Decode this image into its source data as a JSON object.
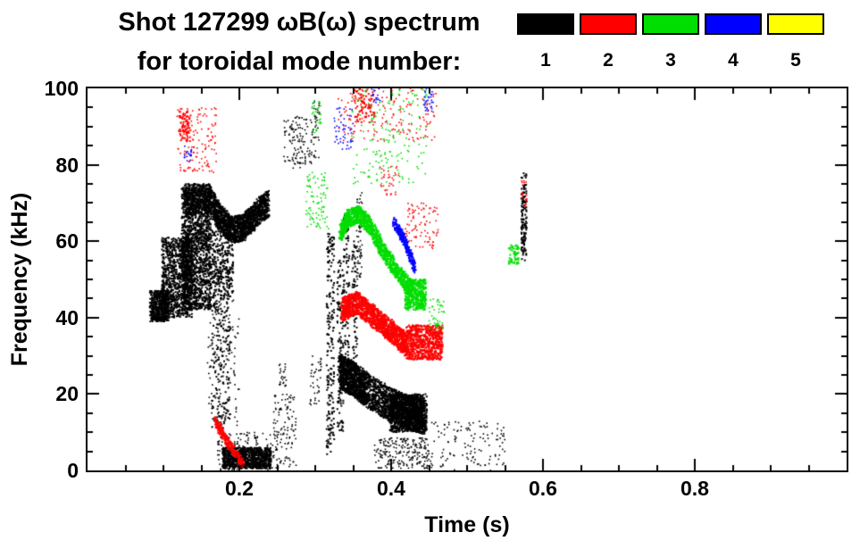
{
  "figure": {
    "title_line1": "Shot 127299 ωB(ω) spectrum",
    "title_line2": "for toroidal mode number:",
    "background": "#ffffff"
  },
  "legend": {
    "entries": [
      {
        "label": "1",
        "color": "#000000"
      },
      {
        "label": "2",
        "color": "#ff0000"
      },
      {
        "label": "3",
        "color": "#00dd00"
      },
      {
        "label": "4",
        "color": "#0000ff"
      },
      {
        "label": "5",
        "color": "#ffff00"
      }
    ]
  },
  "chart_data": {
    "type": "scatter",
    "title": "Shot 127299 ωB(ω) spectrum for toroidal mode number: 1-5",
    "xlabel": "Time (s)",
    "ylabel": "Frequency (kHz)",
    "xlim": [
      0,
      1
    ],
    "ylim": [
      0,
      100
    ],
    "xticks_major": [
      0.2,
      0.4,
      0.6,
      0.8
    ],
    "xticks_minor_step": 0.05,
    "yticks_major": [
      20,
      40,
      60,
      80
    ],
    "yticks_minor_step": 5,
    "xtick_labels": [
      "0.2",
      "0.4",
      "0.6",
      "0.8"
    ],
    "ytick_labels": [
      "0",
      "20",
      "40",
      "60",
      "80",
      "100"
    ],
    "grid": false,
    "legend_position": "top-right",
    "series": [
      {
        "mode": 1,
        "name": "n=1",
        "color": "#000000"
      },
      {
        "mode": 2,
        "name": "n=2",
        "color": "#ff0000"
      },
      {
        "mode": 3,
        "name": "n=3",
        "color": "#00dd00"
      },
      {
        "mode": 4,
        "name": "n=4",
        "color": "#0000ff"
      },
      {
        "mode": 5,
        "name": "n=5",
        "color": "#ffff00"
      }
    ],
    "clusters": [
      {
        "mode": 1,
        "type": "blob",
        "t": [
          0.082,
          0.107
        ],
        "f": [
          39,
          47
        ],
        "n": 500,
        "size": 2
      },
      {
        "mode": 1,
        "type": "blob",
        "t": [
          0.098,
          0.138
        ],
        "f": [
          40,
          61
        ],
        "n": 1000,
        "size": 2
      },
      {
        "mode": 1,
        "type": "blob",
        "t": [
          0.124,
          0.163
        ],
        "f": [
          42,
          74
        ],
        "n": 1500,
        "size": 2
      },
      {
        "mode": 1,
        "type": "blob",
        "t": [
          0.128,
          0.162
        ],
        "f": [
          67,
          75
        ],
        "n": 420,
        "size": 2
      },
      {
        "mode": 1,
        "type": "band",
        "path": [
          [
            0.161,
            71
          ],
          [
            0.175,
            66
          ],
          [
            0.19,
            63
          ],
          [
            0.205,
            63.5
          ],
          [
            0.222,
            67
          ],
          [
            0.238,
            70
          ]
        ],
        "width": 7,
        "n": 1600,
        "size": 2
      },
      {
        "mode": 1,
        "type": "blob",
        "t": [
          0.162,
          0.192
        ],
        "f": [
          45,
          63
        ],
        "n": 260,
        "size": 2
      },
      {
        "mode": 1,
        "type": "vstreak",
        "t": 0.168,
        "dt": 0.004,
        "f": [
          10,
          60
        ],
        "n": 80,
        "size": 2
      },
      {
        "mode": 1,
        "type": "vstreak",
        "t": 0.176,
        "dt": 0.004,
        "f": [
          4,
          55
        ],
        "n": 90,
        "size": 2
      },
      {
        "mode": 1,
        "type": "vstreak",
        "t": 0.184,
        "dt": 0.004,
        "f": [
          12,
          50
        ],
        "n": 70,
        "size": 2
      },
      {
        "mode": 1,
        "type": "blob",
        "t": [
          0.158,
          0.2
        ],
        "f": [
          10,
          45
        ],
        "n": 120,
        "size": 1.6
      },
      {
        "mode": 1,
        "type": "blob",
        "t": [
          0.178,
          0.242
        ],
        "f": [
          0.5,
          6
        ],
        "n": 900,
        "size": 2
      },
      {
        "mode": 1,
        "type": "blob",
        "t": [
          0.17,
          0.252
        ],
        "f": [
          0,
          10
        ],
        "n": 150,
        "size": 1.6
      },
      {
        "mode": 1,
        "type": "blob",
        "t": [
          0.245,
          0.275
        ],
        "f": [
          1,
          20
        ],
        "n": 110,
        "size": 1.6
      },
      {
        "mode": 1,
        "type": "blob",
        "t": [
          0.252,
          0.262
        ],
        "f": [
          22,
          28
        ],
        "n": 25,
        "size": 1.6
      },
      {
        "mode": 1,
        "type": "blob",
        "t": [
          0.258,
          0.285
        ],
        "f": [
          79,
          93
        ],
        "n": 90,
        "size": 1.6
      },
      {
        "mode": 1,
        "type": "blob",
        "t": [
          0.293,
          0.308
        ],
        "f": [
          17,
          30
        ],
        "n": 40,
        "size": 1.6
      },
      {
        "mode": 1,
        "type": "blob",
        "t": [
          0.285,
          0.305
        ],
        "f": [
          80,
          92
        ],
        "n": 50,
        "size": 1.6
      },
      {
        "mode": 1,
        "type": "blob",
        "t": [
          0.297,
          0.306
        ],
        "f": [
          92,
          97
        ],
        "n": 15,
        "size": 1.6
      },
      {
        "mode": 1,
        "type": "vstreak",
        "t": 0.32,
        "dt": 0.005,
        "f": [
          4,
          62
        ],
        "n": 200,
        "size": 2
      },
      {
        "mode": 1,
        "type": "vstreak",
        "t": 0.333,
        "dt": 0.004,
        "f": [
          10,
          55
        ],
        "n": 110,
        "size": 2
      },
      {
        "mode": 1,
        "type": "vstreak",
        "t": 0.341,
        "dt": 0.004,
        "f": [
          25,
          67
        ],
        "n": 100,
        "size": 2
      },
      {
        "mode": 1,
        "type": "vstreak",
        "t": 0.352,
        "dt": 0.004,
        "f": [
          28,
          60
        ],
        "n": 70,
        "size": 2
      },
      {
        "mode": 1,
        "type": "vstreak",
        "t": 0.358,
        "dt": 0.004,
        "f": [
          50,
          73
        ],
        "n": 60,
        "size": 1.6
      },
      {
        "mode": 1,
        "type": "band",
        "path": [
          [
            0.332,
            26
          ],
          [
            0.35,
            24
          ],
          [
            0.368,
            21
          ],
          [
            0.4,
            17
          ],
          [
            0.425,
            15
          ],
          [
            0.443,
            14
          ]
        ],
        "width": 9,
        "n": 2600,
        "size": 2
      },
      {
        "mode": 1,
        "type": "blob",
        "t": [
          0.398,
          0.447
        ],
        "f": [
          10,
          20
        ],
        "n": 700,
        "size": 2
      },
      {
        "mode": 1,
        "type": "blob",
        "t": [
          0.378,
          0.45
        ],
        "f": [
          0.5,
          8.5
        ],
        "n": 220,
        "size": 1.6
      },
      {
        "mode": 1,
        "type": "blob",
        "t": [
          0.452,
          0.55
        ],
        "f": [
          0,
          13
        ],
        "n": 130,
        "size": 1.6
      },
      {
        "mode": 1,
        "type": "vstreak",
        "t": 0.575,
        "dt": 0.0035,
        "f": [
          55,
          78
        ],
        "n": 140,
        "size": 2
      },
      {
        "mode": 2,
        "type": "blob",
        "t": [
          0.118,
          0.17
        ],
        "f": [
          78,
          95
        ],
        "n": 130,
        "size": 1.6
      },
      {
        "mode": 2,
        "type": "blob",
        "t": [
          0.121,
          0.136
        ],
        "f": [
          86,
          94
        ],
        "n": 70,
        "size": 2
      },
      {
        "mode": 2,
        "type": "band",
        "path": [
          [
            0.168,
            13
          ],
          [
            0.186,
            7
          ],
          [
            0.205,
            1.5
          ]
        ],
        "width": 2.5,
        "n": 260,
        "size": 2
      },
      {
        "mode": 2,
        "type": "band",
        "path": [
          [
            0.335,
            42
          ],
          [
            0.355,
            44
          ],
          [
            0.378,
            40
          ],
          [
            0.4,
            36.5
          ],
          [
            0.422,
            32.5
          ]
        ],
        "width": 6,
        "n": 1500,
        "size": 2
      },
      {
        "mode": 2,
        "type": "blob",
        "t": [
          0.42,
          0.468
        ],
        "f": [
          29,
          38
        ],
        "n": 700,
        "size": 2
      },
      {
        "mode": 2,
        "type": "blob",
        "t": [
          0.33,
          0.46
        ],
        "f": [
          86,
          100
        ],
        "n": 150,
        "size": 1.6
      },
      {
        "mode": 2,
        "type": "blob",
        "t": [
          0.352,
          0.378
        ],
        "f": [
          91,
          100
        ],
        "n": 80,
        "size": 2
      },
      {
        "mode": 2,
        "type": "blob",
        "t": [
          0.418,
          0.462
        ],
        "f": [
          58,
          70
        ],
        "n": 90,
        "size": 1.6
      },
      {
        "mode": 2,
        "type": "blob",
        "t": [
          0.385,
          0.41
        ],
        "f": [
          72,
          80
        ],
        "n": 35,
        "size": 1.6
      },
      {
        "mode": 2,
        "type": "blob",
        "t": [
          0.571,
          0.579
        ],
        "f": [
          69,
          76
        ],
        "n": 20,
        "size": 1.6
      },
      {
        "mode": 3,
        "type": "blob",
        "t": [
          0.288,
          0.318
        ],
        "f": [
          63,
          78
        ],
        "n": 90,
        "size": 1.6
      },
      {
        "mode": 3,
        "type": "blob",
        "t": [
          0.295,
          0.308
        ],
        "f": [
          88,
          97
        ],
        "n": 30,
        "size": 1.6
      },
      {
        "mode": 3,
        "type": "band",
        "path": [
          [
            0.333,
            62
          ],
          [
            0.343,
            66
          ],
          [
            0.357,
            67
          ],
          [
            0.372,
            64
          ],
          [
            0.388,
            58
          ],
          [
            0.408,
            52
          ],
          [
            0.428,
            47
          ]
        ],
        "width": 4.5,
        "n": 1300,
        "size": 2
      },
      {
        "mode": 3,
        "type": "blob",
        "t": [
          0.418,
          0.446
        ],
        "f": [
          42,
          50
        ],
        "n": 420,
        "size": 2
      },
      {
        "mode": 3,
        "type": "blob",
        "t": [
          0.348,
          0.447
        ],
        "f": [
          75,
          100
        ],
        "n": 170,
        "size": 1.6
      },
      {
        "mode": 3,
        "type": "blob",
        "t": [
          0.45,
          0.47
        ],
        "f": [
          37,
          45
        ],
        "n": 45,
        "size": 1.6
      },
      {
        "mode": 3,
        "type": "blob",
        "t": [
          0.555,
          0.568
        ],
        "f": [
          54,
          59
        ],
        "n": 55,
        "size": 2
      },
      {
        "mode": 4,
        "type": "band",
        "path": [
          [
            0.404,
            65
          ],
          [
            0.418,
            60
          ],
          [
            0.431,
            53
          ]
        ],
        "width": 2.5,
        "n": 280,
        "size": 2
      },
      {
        "mode": 4,
        "type": "blob",
        "t": [
          0.325,
          0.35
        ],
        "f": [
          84,
          95
        ],
        "n": 50,
        "size": 1.6
      },
      {
        "mode": 4,
        "type": "blob",
        "t": [
          0.443,
          0.456
        ],
        "f": [
          94,
          100
        ],
        "n": 30,
        "size": 1.6
      },
      {
        "mode": 4,
        "type": "blob",
        "t": [
          0.127,
          0.137
        ],
        "f": [
          81,
          85
        ],
        "n": 18,
        "size": 1.6
      },
      {
        "mode": 4,
        "type": "blob",
        "t": [
          0.374,
          0.386
        ],
        "f": [
          96,
          100
        ],
        "n": 15,
        "size": 1.6
      }
    ]
  }
}
